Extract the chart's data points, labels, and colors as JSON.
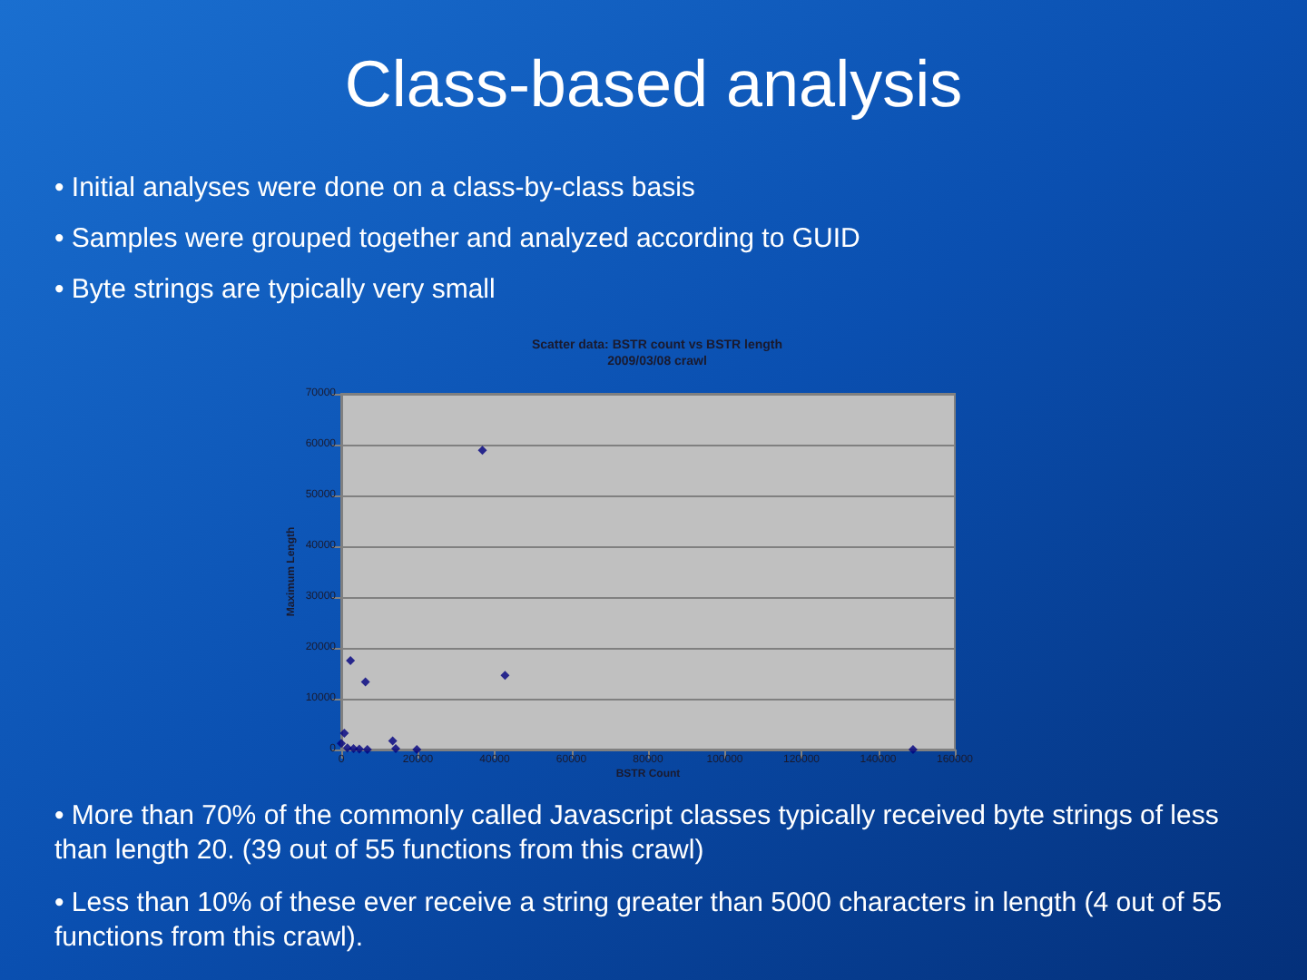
{
  "chart_data": {
    "type": "scatter",
    "title": "Scatter data: BSTR count vs BSTR length",
    "subtitle": "2009/03/08 crawl",
    "xlabel": "BSTR Count",
    "ylabel": "Maximum Length",
    "annotations": [
      "Class-based analysis",
      "• Initial analyses were done on a class-by-class basis",
      "• Samples were grouped together and analyzed according to GUID",
      "• Byte strings are typically very small",
      "• More than 70% of the commonly called Javascript classes typically received byte strings of less than length 20. (39 out of 55 functions from this crawl)",
      "• Less than 10% of these ever receive a string greater than 5000 characters in length (4 out of 55 functions from this crawl)."
    ],
    "x": [
      36800,
      2400,
      6300,
      42700,
      800,
      13400,
      14200,
      19700,
      6800,
      149100,
      0,
      1600,
      3200,
      4700
    ],
    "values": [
      58900,
      17500,
      13300,
      14600,
      3200,
      1700,
      200,
      0,
      0,
      0,
      1200,
      300,
      200,
      100
    ],
    "color": "#000080",
    "marker": "diamond",
    "xlim": [
      0,
      160000
    ],
    "xticks": [
      0,
      20000,
      40000,
      60000,
      80000,
      100000,
      120000,
      140000,
      160000
    ],
    "ylim": [
      0,
      70000
    ],
    "yticks": [
      0,
      10000,
      20000,
      30000,
      40000,
      50000,
      60000,
      70000
    ],
    "grid": "y"
  }
}
